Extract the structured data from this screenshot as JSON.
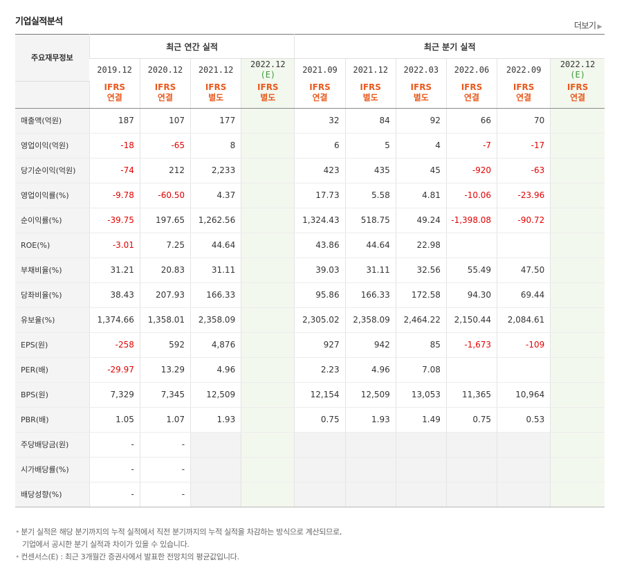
{
  "header": {
    "title": "기업실적분석",
    "more_label": "더보기"
  },
  "table": {
    "rowhead": "주요재무정보",
    "groups": {
      "annual": "최근 연간 실적",
      "quarter": "최근 분기 실적"
    },
    "periods": [
      {
        "date": "2019.12",
        "est": "",
        "ifrs": "IFRS",
        "basis": "연결"
      },
      {
        "date": "2020.12",
        "est": "",
        "ifrs": "IFRS",
        "basis": "연결"
      },
      {
        "date": "2021.12",
        "est": "",
        "ifrs": "IFRS",
        "basis": "별도"
      },
      {
        "date": "2022.12",
        "est": "(E)",
        "ifrs": "IFRS",
        "basis": "별도"
      },
      {
        "date": "2021.09",
        "est": "",
        "ifrs": "IFRS",
        "basis": "연결"
      },
      {
        "date": "2021.12",
        "est": "",
        "ifrs": "IFRS",
        "basis": "별도"
      },
      {
        "date": "2022.03",
        "est": "",
        "ifrs": "IFRS",
        "basis": "별도"
      },
      {
        "date": "2022.06",
        "est": "",
        "ifrs": "IFRS",
        "basis": "연결"
      },
      {
        "date": "2022.09",
        "est": "",
        "ifrs": "IFRS",
        "basis": "연결"
      },
      {
        "date": "2022.12",
        "est": "(E)",
        "ifrs": "IFRS",
        "basis": "연결"
      }
    ],
    "rows": [
      {
        "label": "매출액(억원)",
        "values": [
          "187",
          "107",
          "177",
          "",
          "32",
          "84",
          "92",
          "66",
          "70",
          ""
        ]
      },
      {
        "label": "영업이익(억원)",
        "values": [
          "-18",
          "-65",
          "8",
          "",
          "6",
          "5",
          "4",
          "-7",
          "-17",
          ""
        ]
      },
      {
        "label": "당기순이익(억원)",
        "values": [
          "-74",
          "212",
          "2,233",
          "",
          "423",
          "435",
          "45",
          "-920",
          "-63",
          ""
        ]
      },
      {
        "label": "영업이익률(%)",
        "values": [
          "-9.78",
          "-60.50",
          "4.37",
          "",
          "17.73",
          "5.58",
          "4.81",
          "-10.06",
          "-23.96",
          ""
        ]
      },
      {
        "label": "순이익률(%)",
        "values": [
          "-39.75",
          "197.65",
          "1,262.56",
          "",
          "1,324.43",
          "518.75",
          "49.24",
          "-1,398.08",
          "-90.72",
          ""
        ]
      },
      {
        "label": "ROE(%)",
        "values": [
          "-3.01",
          "7.25",
          "44.64",
          "",
          "43.86",
          "44.64",
          "22.98",
          "",
          "",
          ""
        ]
      },
      {
        "label": "부채비율(%)",
        "values": [
          "31.21",
          "20.83",
          "31.11",
          "",
          "39.03",
          "31.11",
          "32.56",
          "55.49",
          "47.50",
          ""
        ]
      },
      {
        "label": "당좌비율(%)",
        "values": [
          "38.43",
          "207.93",
          "166.33",
          "",
          "95.86",
          "166.33",
          "172.58",
          "94.30",
          "69.44",
          ""
        ]
      },
      {
        "label": "유보율(%)",
        "values": [
          "1,374.66",
          "1,358.01",
          "2,358.09",
          "",
          "2,305.02",
          "2,358.09",
          "2,464.22",
          "2,150.44",
          "2,084.61",
          ""
        ]
      },
      {
        "label": "EPS(원)",
        "values": [
          "-258",
          "592",
          "4,876",
          "",
          "927",
          "942",
          "85",
          "-1,673",
          "-109",
          ""
        ]
      },
      {
        "label": "PER(배)",
        "values": [
          "-29.97",
          "13.29",
          "4.96",
          "",
          "2.23",
          "4.96",
          "7.08",
          "",
          "",
          ""
        ]
      },
      {
        "label": "BPS(원)",
        "values": [
          "7,329",
          "7,345",
          "12,509",
          "",
          "12,154",
          "12,509",
          "13,053",
          "11,365",
          "10,964",
          ""
        ]
      },
      {
        "label": "PBR(배)",
        "values": [
          "1.05",
          "1.07",
          "1.93",
          "",
          "0.75",
          "1.93",
          "1.49",
          "0.75",
          "0.53",
          ""
        ]
      },
      {
        "label": "주당배당금(원)",
        "values": [
          "-",
          "-",
          "",
          "",
          "",
          "",
          "",
          "",
          "",
          ""
        ]
      },
      {
        "label": "시가배당률(%)",
        "values": [
          "-",
          "-",
          "",
          "",
          "",
          "",
          "",
          "",
          "",
          ""
        ]
      },
      {
        "label": "배당성향(%)",
        "values": [
          "-",
          "-",
          "",
          "",
          "",
          "",
          "",
          "",
          "",
          ""
        ]
      }
    ]
  },
  "notes": [
    "분기 실적은 해당 분기까지의 누적 실적에서 직전 분기까지의 누적 실적을 차감하는 방식으로 계산되므로,",
    "기업에서 공시한 분기 실적과 차이가 있을 수 있습니다.",
    "컨센서스(E) : 최근 3개월간 증권사에서 발표한 전망치의 평균값입니다."
  ]
}
